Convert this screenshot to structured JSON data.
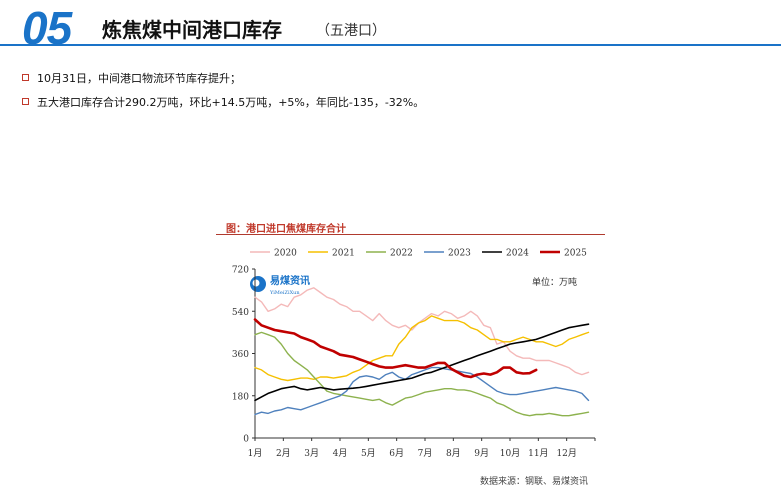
{
  "header": {
    "number": "05",
    "title": "炼焦煤中间港口库存",
    "subtitle": "（五港口）"
  },
  "bullets": [
    "10月31日，中间港口物流环节库存提升；",
    "五大港口库存合计290.2万吨，环比+14.5万吨，+5%，年同比-135，-32%。"
  ],
  "chart_title": "图：港口进口焦煤库存合计",
  "unit_label": "单位：万吨",
  "watermark": {
    "cn": "易煤资讯",
    "en": "YiMeiZiXun"
  },
  "source": "数据来源：钢联、易煤资讯",
  "chart_data": {
    "type": "line",
    "title": "港口进口焦煤库存合计",
    "ylabel": "万吨",
    "ylim": [
      0,
      720
    ],
    "xlim": [
      0,
      52
    ],
    "yticks": [
      0,
      180,
      360,
      540,
      720
    ],
    "ytick_labels": [
      "0",
      "180",
      "360",
      "540",
      "720"
    ],
    "xticks": [
      "1月",
      "2月",
      "3月",
      "4月",
      "5月",
      "6月",
      "7月",
      "8月",
      "9月",
      "10月",
      "11月",
      "12月"
    ],
    "series": [
      {
        "name": "2020",
        "color": "#f4b9b9",
        "width": 1.4,
        "x": [
          0,
          1,
          2,
          3,
          4,
          5,
          6,
          7,
          8,
          9,
          10,
          11,
          12,
          13,
          14,
          15,
          16,
          17,
          18,
          19,
          20,
          21,
          22,
          23,
          24,
          25,
          26,
          27,
          28,
          29,
          30,
          31,
          32,
          33,
          34,
          35,
          36,
          37,
          38,
          39,
          40,
          41,
          42,
          43,
          44,
          45,
          46,
          47,
          48,
          49,
          50,
          51
        ],
        "values": [
          600,
          580,
          540,
          550,
          570,
          560,
          600,
          610,
          630,
          640,
          620,
          600,
          590,
          570,
          560,
          540,
          540,
          520,
          500,
          530,
          500,
          480,
          470,
          480,
          460,
          490,
          510,
          530,
          520,
          540,
          530,
          510,
          520,
          540,
          520,
          480,
          470,
          400,
          410,
          370,
          350,
          340,
          340,
          330,
          330,
          330,
          320,
          310,
          300,
          280,
          270,
          280
        ]
      },
      {
        "name": "2021",
        "color": "#f5c000",
        "width": 1.4,
        "x": [
          0,
          1,
          2,
          3,
          4,
          5,
          6,
          7,
          8,
          9,
          10,
          11,
          12,
          13,
          14,
          15,
          16,
          17,
          18,
          19,
          20,
          21,
          22,
          23,
          24,
          25,
          26,
          27,
          28,
          29,
          30,
          31,
          32,
          33,
          34,
          35,
          36,
          37,
          38,
          39,
          40,
          41,
          42,
          43,
          44,
          45,
          46,
          47,
          48,
          49,
          50,
          51
        ],
        "values": [
          300,
          290,
          270,
          260,
          250,
          245,
          250,
          255,
          255,
          250,
          260,
          260,
          255,
          260,
          265,
          280,
          290,
          310,
          330,
          340,
          350,
          350,
          400,
          430,
          470,
          490,
          500,
          520,
          510,
          500,
          500,
          500,
          490,
          470,
          460,
          440,
          420,
          420,
          410,
          410,
          420,
          430,
          420,
          410,
          410,
          400,
          390,
          400,
          420,
          430,
          440,
          450
        ]
      },
      {
        "name": "2022",
        "color": "#8db24e",
        "width": 1.4,
        "x": [
          0,
          1,
          2,
          3,
          4,
          5,
          6,
          7,
          8,
          9,
          10,
          11,
          12,
          13,
          14,
          15,
          16,
          17,
          18,
          19,
          20,
          21,
          22,
          23,
          24,
          25,
          26,
          27,
          28,
          29,
          30,
          31,
          32,
          33,
          34,
          35,
          36,
          37,
          38,
          39,
          40,
          41,
          42,
          43,
          44,
          45,
          46,
          47,
          48,
          49,
          50,
          51
        ],
        "values": [
          440,
          450,
          440,
          430,
          400,
          360,
          330,
          310,
          290,
          260,
          230,
          200,
          190,
          185,
          180,
          175,
          170,
          165,
          160,
          165,
          150,
          140,
          155,
          170,
          175,
          185,
          195,
          200,
          205,
          210,
          210,
          205,
          205,
          200,
          190,
          180,
          170,
          150,
          140,
          125,
          110,
          100,
          95,
          100,
          100,
          105,
          100,
          95,
          95,
          100,
          105,
          110
        ]
      },
      {
        "name": "2023",
        "color": "#4f81bd",
        "width": 1.4,
        "x": [
          0,
          1,
          2,
          3,
          4,
          5,
          6,
          7,
          8,
          9,
          10,
          11,
          12,
          13,
          14,
          15,
          16,
          17,
          18,
          19,
          20,
          21,
          22,
          23,
          24,
          25,
          26,
          27,
          28,
          29,
          30,
          31,
          32,
          33,
          34,
          35,
          36,
          37,
          38,
          39,
          40,
          41,
          42,
          43,
          44,
          45,
          46,
          47,
          48,
          49,
          50,
          51
        ],
        "values": [
          100,
          110,
          105,
          115,
          120,
          130,
          125,
          120,
          130,
          140,
          150,
          160,
          170,
          180,
          200,
          240,
          260,
          265,
          260,
          250,
          270,
          280,
          260,
          250,
          270,
          280,
          290,
          300,
          300,
          295,
          290,
          285,
          280,
          275,
          260,
          240,
          220,
          200,
          190,
          185,
          185,
          190,
          195,
          200,
          205,
          210,
          215,
          210,
          205,
          200,
          190,
          160
        ]
      },
      {
        "name": "2024",
        "color": "#000000",
        "width": 1.6,
        "x": [
          0,
          1,
          2,
          3,
          4,
          5,
          6,
          7,
          8,
          9,
          10,
          11,
          12,
          13,
          14,
          15,
          16,
          17,
          18,
          19,
          20,
          21,
          22,
          23,
          24,
          25,
          26,
          27,
          28,
          29,
          30,
          31,
          32,
          33,
          34,
          35,
          36,
          37,
          38,
          39,
          40,
          41,
          42,
          43,
          44,
          45,
          46,
          47,
          48,
          49,
          50,
          51
        ],
        "values": [
          160,
          175,
          190,
          200,
          210,
          215,
          220,
          210,
          205,
          210,
          215,
          210,
          205,
          208,
          210,
          212,
          215,
          220,
          225,
          230,
          235,
          240,
          245,
          250,
          255,
          265,
          275,
          280,
          290,
          300,
          310,
          320,
          330,
          340,
          350,
          360,
          370,
          380,
          390,
          400,
          405,
          410,
          415,
          420,
          430,
          440,
          450,
          460,
          470,
          475,
          480,
          485
        ]
      },
      {
        "name": "2025",
        "color": "#c00000",
        "width": 2.6,
        "x": [
          0,
          1,
          2,
          3,
          4,
          5,
          6,
          7,
          8,
          9,
          10,
          11,
          12,
          13,
          14,
          15,
          16,
          17,
          18,
          19,
          20,
          21,
          22,
          23,
          24,
          25,
          26,
          27,
          28,
          29,
          30,
          31,
          32,
          33,
          34,
          35,
          36,
          37,
          38,
          39,
          40,
          41,
          42,
          43
        ],
        "values": [
          505,
          480,
          470,
          460,
          455,
          450,
          445,
          430,
          420,
          410,
          390,
          380,
          370,
          355,
          350,
          345,
          335,
          325,
          315,
          305,
          300,
          300,
          305,
          310,
          305,
          300,
          300,
          310,
          320,
          320,
          295,
          280,
          265,
          260,
          270,
          275,
          270,
          280,
          300,
          300,
          280,
          275,
          276,
          290
        ]
      }
    ]
  }
}
